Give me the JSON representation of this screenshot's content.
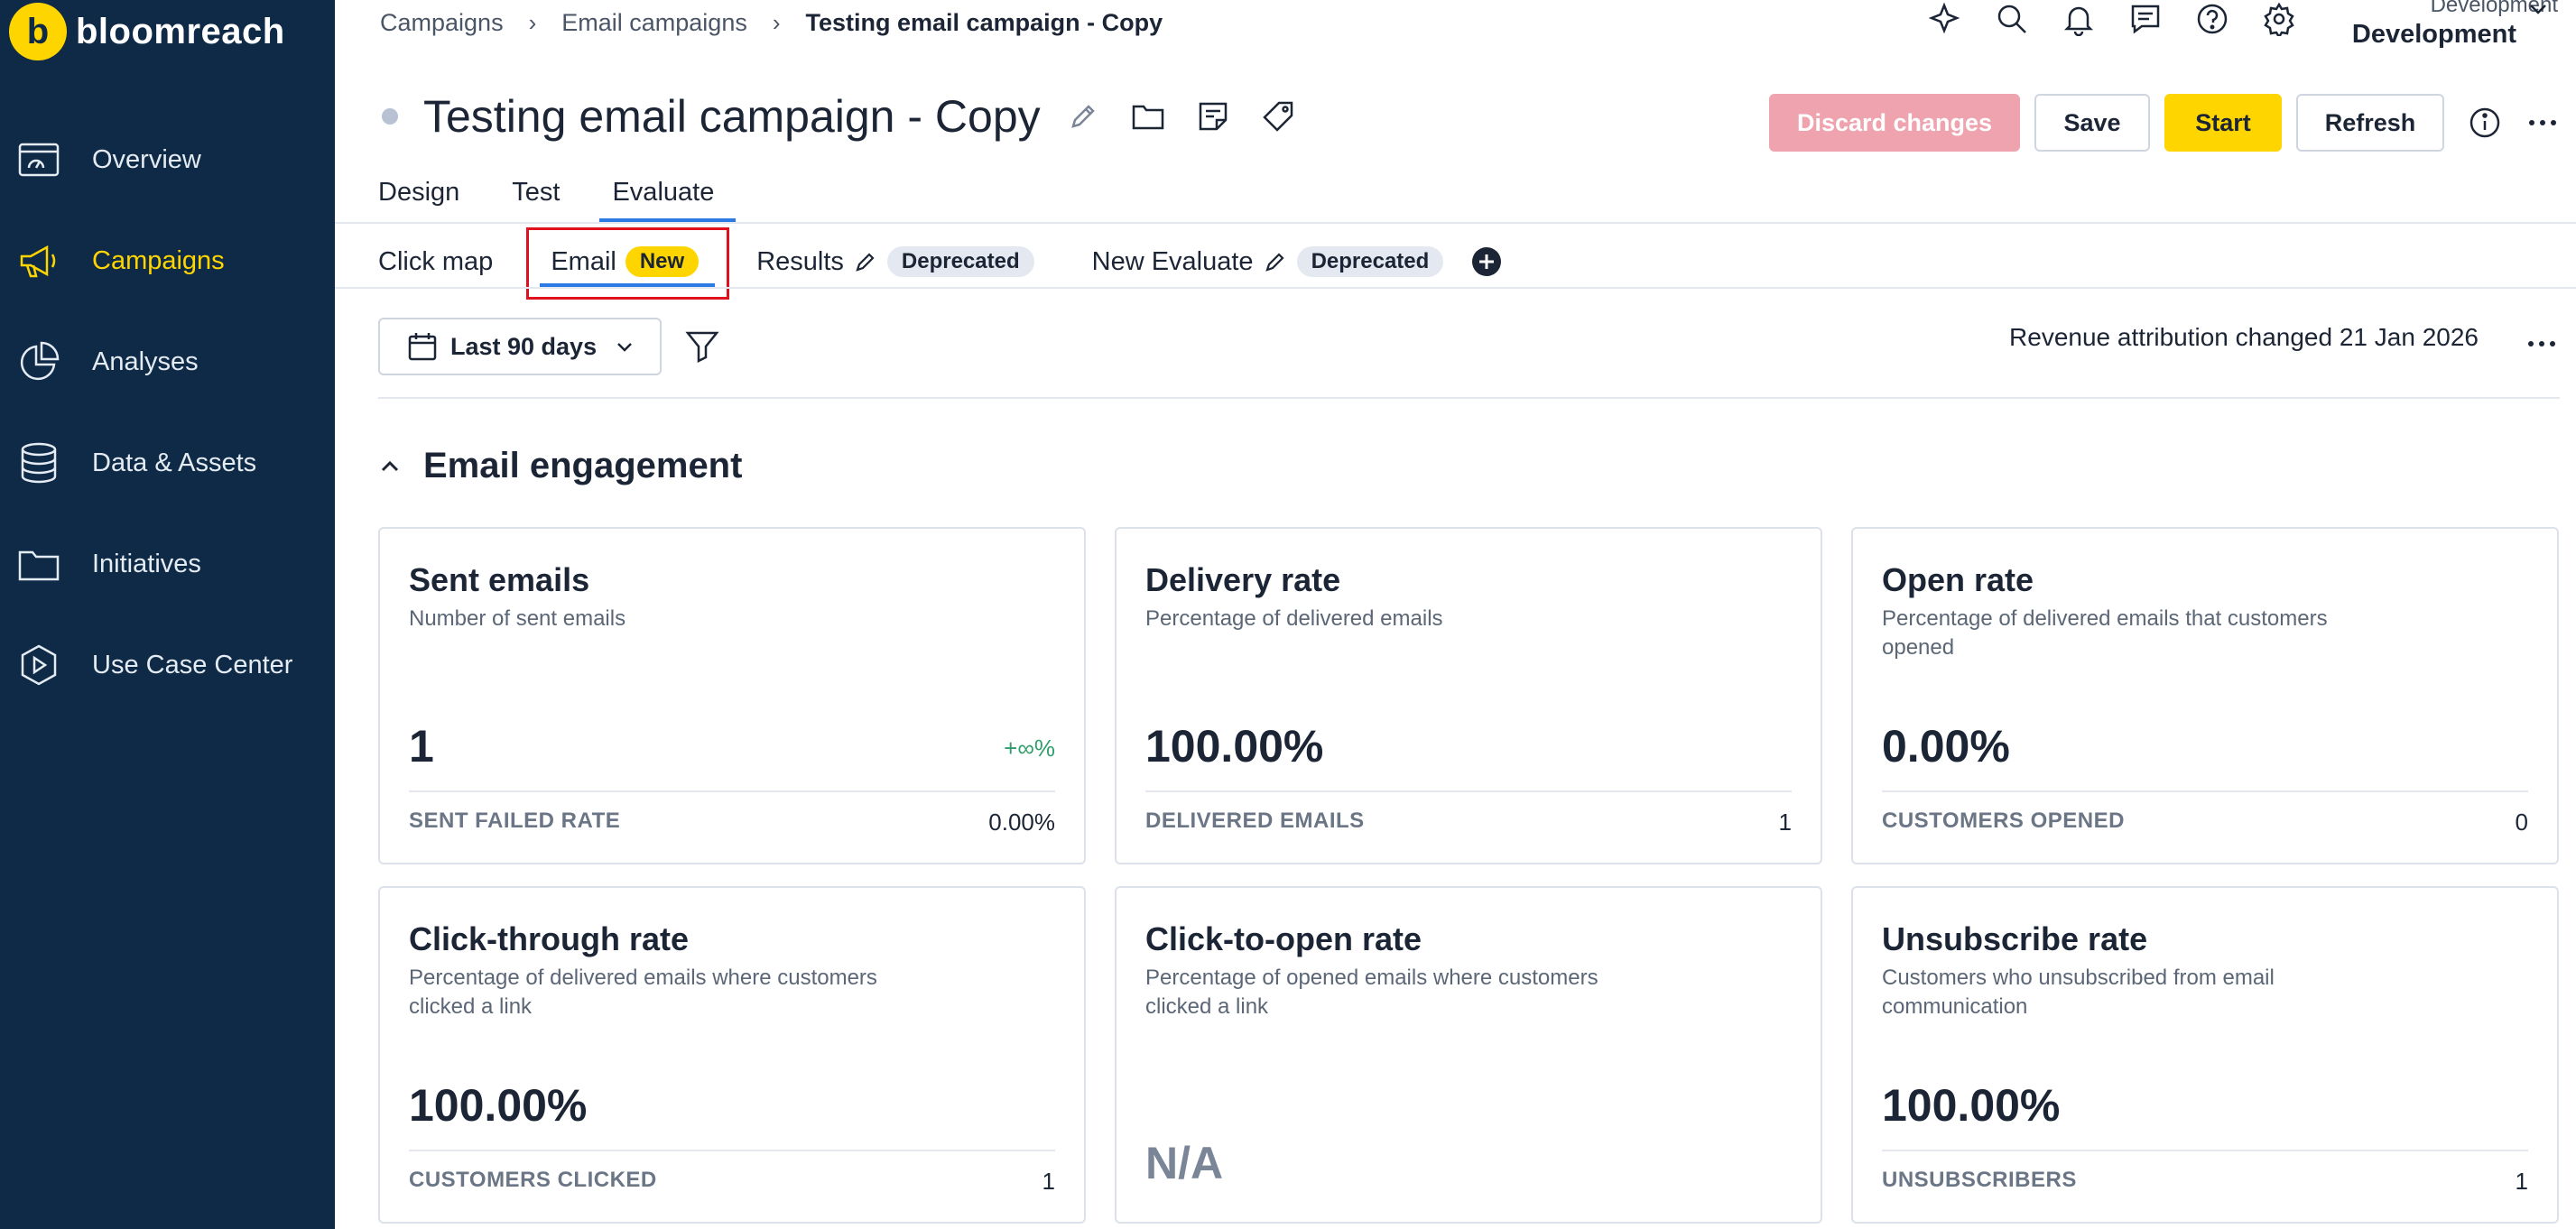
{
  "brand": {
    "name": "bloomreach",
    "mark": "b"
  },
  "sidebar": {
    "items": [
      {
        "label": "Overview",
        "icon": "overview-icon"
      },
      {
        "label": "Campaigns",
        "icon": "megaphone-icon",
        "active": true
      },
      {
        "label": "Analyses",
        "icon": "pie-chart-icon"
      },
      {
        "label": "Data & Assets",
        "icon": "database-icon"
      },
      {
        "label": "Initiatives",
        "icon": "folder-icon"
      },
      {
        "label": "Use Case Center",
        "icon": "play-circle-icon"
      }
    ]
  },
  "breadcrumb": {
    "items": [
      "Campaigns",
      "Email campaigns"
    ],
    "current": "Testing email campaign - Copy"
  },
  "workspace": {
    "project": "Development",
    "name": "Development"
  },
  "header": {
    "title": "Testing email campaign - Copy",
    "buttons": {
      "discard": "Discard changes",
      "save": "Save",
      "start": "Start",
      "refresh": "Refresh"
    }
  },
  "tabs": [
    "Design",
    "Test",
    "Evaluate"
  ],
  "subtabs": {
    "click_map": "Click map",
    "email": "Email",
    "email_badge": "New",
    "results": "Results",
    "results_badge": "Deprecated",
    "new_evaluate": "New Evaluate",
    "new_evaluate_badge": "Deprecated"
  },
  "filters": {
    "date_range": "Last 90 days",
    "attribution_note": "Revenue attribution changed 21 Jan 2026"
  },
  "section": {
    "title": "Email engagement"
  },
  "cards": [
    {
      "title": "Sent emails",
      "subtitle": "Number of sent emails",
      "value": "1",
      "delta": "+∞%",
      "foot_label": "SENT FAILED RATE",
      "foot_value": "0.00%"
    },
    {
      "title": "Delivery rate",
      "subtitle": "Percentage of delivered emails",
      "value": "100.00%",
      "delta": "",
      "foot_label": "DELIVERED EMAILS",
      "foot_value": "1"
    },
    {
      "title": "Open rate",
      "subtitle": "Percentage of delivered emails that customers opened",
      "value": "0.00%",
      "delta": "",
      "foot_label": "CUSTOMERS OPENED",
      "foot_value": "0"
    },
    {
      "title": "Click-through rate",
      "subtitle": "Percentage of delivered emails where customers clicked a link",
      "value": "100.00%",
      "delta": "",
      "foot_label": "CUSTOMERS CLICKED",
      "foot_value": "1"
    },
    {
      "title": "Click-to-open rate",
      "subtitle": "Percentage of opened emails where customers clicked a link",
      "value": "N/A",
      "delta": "",
      "foot_label": "",
      "foot_value": ""
    },
    {
      "title": "Unsubscribe rate",
      "subtitle": "Customers who unsubscribed from email communication",
      "value": "100.00%",
      "delta": "",
      "foot_label": "UNSUBSCRIBERS",
      "foot_value": "1"
    }
  ]
}
